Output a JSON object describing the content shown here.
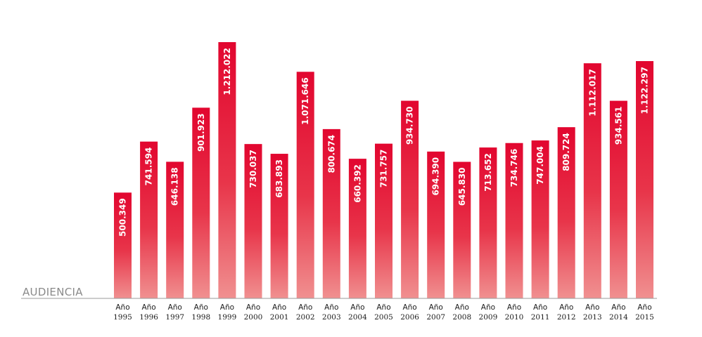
{
  "chart_data": {
    "type": "bar",
    "ylabel": "AUDIENCIA",
    "ylim": [
      0,
      1212022
    ],
    "categories": [
      {
        "word": "Año",
        "year": "1995"
      },
      {
        "word": "Año",
        "year": "1996"
      },
      {
        "word": "Año",
        "year": "1997"
      },
      {
        "word": "Año",
        "year": "1998"
      },
      {
        "word": "Año",
        "year": "1999"
      },
      {
        "word": "Año",
        "year": "2000"
      },
      {
        "word": "Año",
        "year": "2001"
      },
      {
        "word": "Año",
        "year": "2002"
      },
      {
        "word": "Año",
        "year": "2003"
      },
      {
        "word": "Año",
        "year": "2004"
      },
      {
        "word": "Año",
        "year": "2005"
      },
      {
        "word": "Año",
        "year": "2006"
      },
      {
        "word": "Año",
        "year": "2007"
      },
      {
        "word": "Año",
        "year": "2008"
      },
      {
        "word": "Año",
        "year": "2009"
      },
      {
        "word": "Año",
        "year": "2010"
      },
      {
        "word": "Año",
        "year": "2011"
      },
      {
        "word": "Año",
        "year": "2012"
      },
      {
        "word": "Año",
        "year": "2013"
      },
      {
        "word": "Año",
        "year": "2014"
      },
      {
        "word": "Año",
        "year": "2015"
      }
    ],
    "values": [
      500349,
      741594,
      646138,
      901923,
      1212022,
      730037,
      683893,
      1071646,
      800674,
      660392,
      731757,
      934730,
      694390,
      645830,
      713652,
      734746,
      747004,
      809724,
      1112017,
      934561,
      1122297
    ],
    "value_labels": [
      "500.349",
      "741.594",
      "646.138",
      "901.923",
      "1.212.022",
      "730.037",
      "683.893",
      "1.071.646",
      "800.674",
      "660.392",
      "731.757",
      "934.730",
      "694.390",
      "645.830",
      "713.652",
      "734.746",
      "747.004",
      "809.724",
      "1.112.017",
      "934.561",
      "1.122.297"
    ],
    "colors": {
      "bar_top": "#e2062f",
      "bar_bottom": "#f09090",
      "axis": "#9a9a9a",
      "label_text": "#ffffff"
    },
    "grid": false,
    "legend": "none"
  }
}
